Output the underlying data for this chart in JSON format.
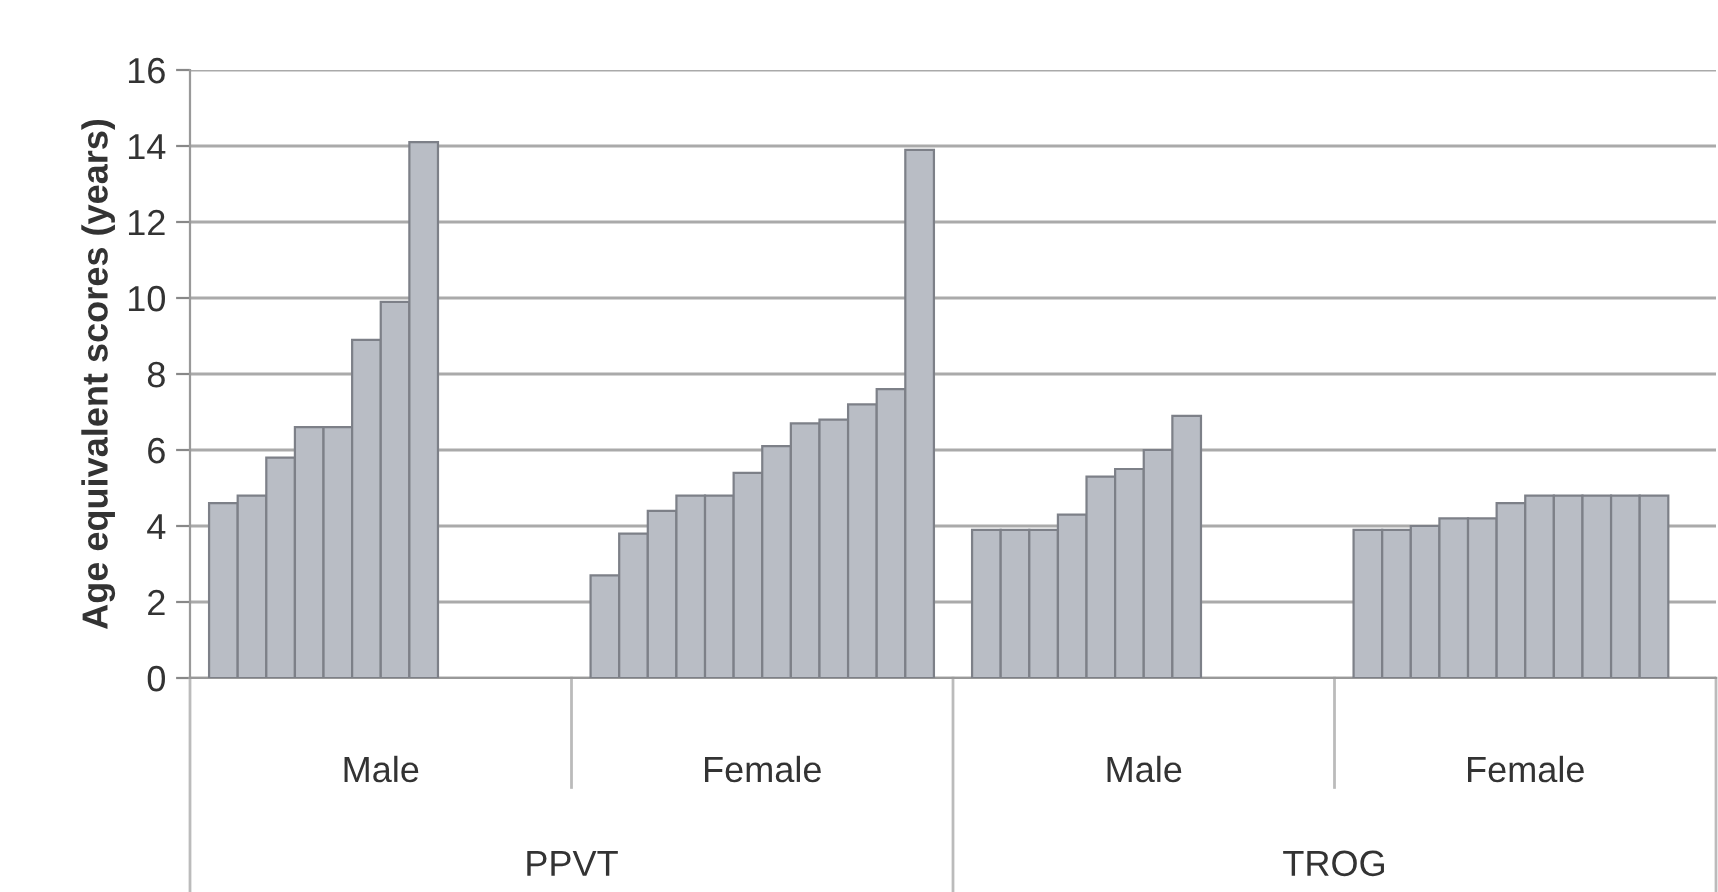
{
  "chart_data": {
    "type": "bar",
    "ylabel": "Age equivalent scores (years)",
    "categories": [
      "Male",
      "Female",
      "Male",
      "Female"
    ],
    "series": [
      {
        "color": "#b9bdc5",
        "values": [
          4.6,
          2.7,
          3.9,
          3.9
        ]
      },
      {
        "color": "#b9bdc5",
        "values": [
          4.8,
          3.8,
          3.9,
          3.9
        ]
      },
      {
        "color": "#b9bdc5",
        "values": [
          5.8,
          4.4,
          3.9,
          4.0
        ]
      },
      {
        "color": "#b9bdc5",
        "values": [
          6.6,
          4.8,
          4.3,
          4.2
        ]
      },
      {
        "color": "#b9bdc5",
        "values": [
          6.6,
          4.8,
          5.3,
          4.2
        ]
      },
      {
        "color": "#b9bdc5",
        "values": [
          8.9,
          5.4,
          5.5,
          4.6
        ]
      },
      {
        "color": "#b9bdc5",
        "values": [
          9.9,
          6.1,
          6.0,
          4.8
        ]
      },
      {
        "color": "#b9bdc5",
        "values": [
          14.1,
          6.7,
          6.9,
          4.8
        ]
      },
      {
        "color": "#b9bdc5",
        "values": [
          null,
          6.8,
          null,
          4.8
        ]
      },
      {
        "color": "#b9bdc5",
        "values": [
          null,
          7.2,
          null,
          4.8
        ]
      },
      {
        "color": "#b9bdc5",
        "values": [
          null,
          7.6,
          null,
          4.8
        ]
      },
      {
        "color": "#b9bdc5",
        "values": [
          null,
          13.9,
          null,
          null
        ]
      }
    ],
    "annotations": [
      "PPVT",
      "TROG"
    ],
    "ylim": [
      0,
      16
    ],
    "yticks": [
      0,
      2,
      4,
      6,
      8,
      10,
      12,
      14,
      16
    ],
    "grid": "y",
    "legend": false
  }
}
